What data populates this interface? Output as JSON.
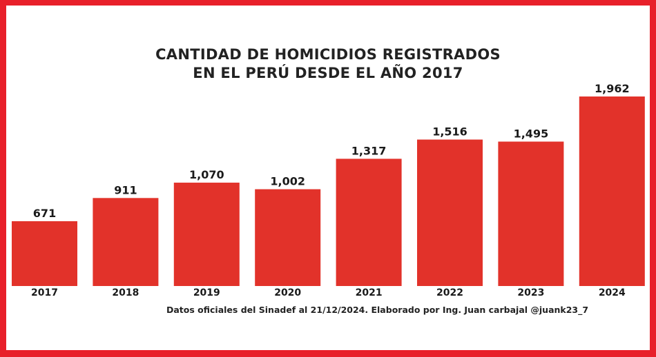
{
  "chart_data": {
    "type": "bar",
    "title_lines": [
      "CANTIDAD DE HOMICIDIOS REGISTRADOS",
      "EN EL PERÚ DESDE EL AÑO 2017"
    ],
    "categories": [
      "2017",
      "2018",
      "2019",
      "2020",
      "2021",
      "2022",
      "2023",
      "2024"
    ],
    "values": [
      671,
      911,
      1070,
      1002,
      1317,
      1516,
      1495,
      1962
    ],
    "value_labels": [
      "671",
      "911",
      "1,070",
      "1,002",
      "1,317",
      "1,516",
      "1,495",
      "1,962"
    ],
    "xlabel": "",
    "ylabel": "",
    "ylim": [
      0,
      1962
    ],
    "grid": false,
    "bar_color": "#e2322a"
  },
  "footer": "Datos oficiales del Sinadef al 21/12/2024. Elaborado por Ing. Juan carbajal @juank23_7",
  "colors": {
    "border": "#e8202a",
    "background": "#ffffff"
  }
}
